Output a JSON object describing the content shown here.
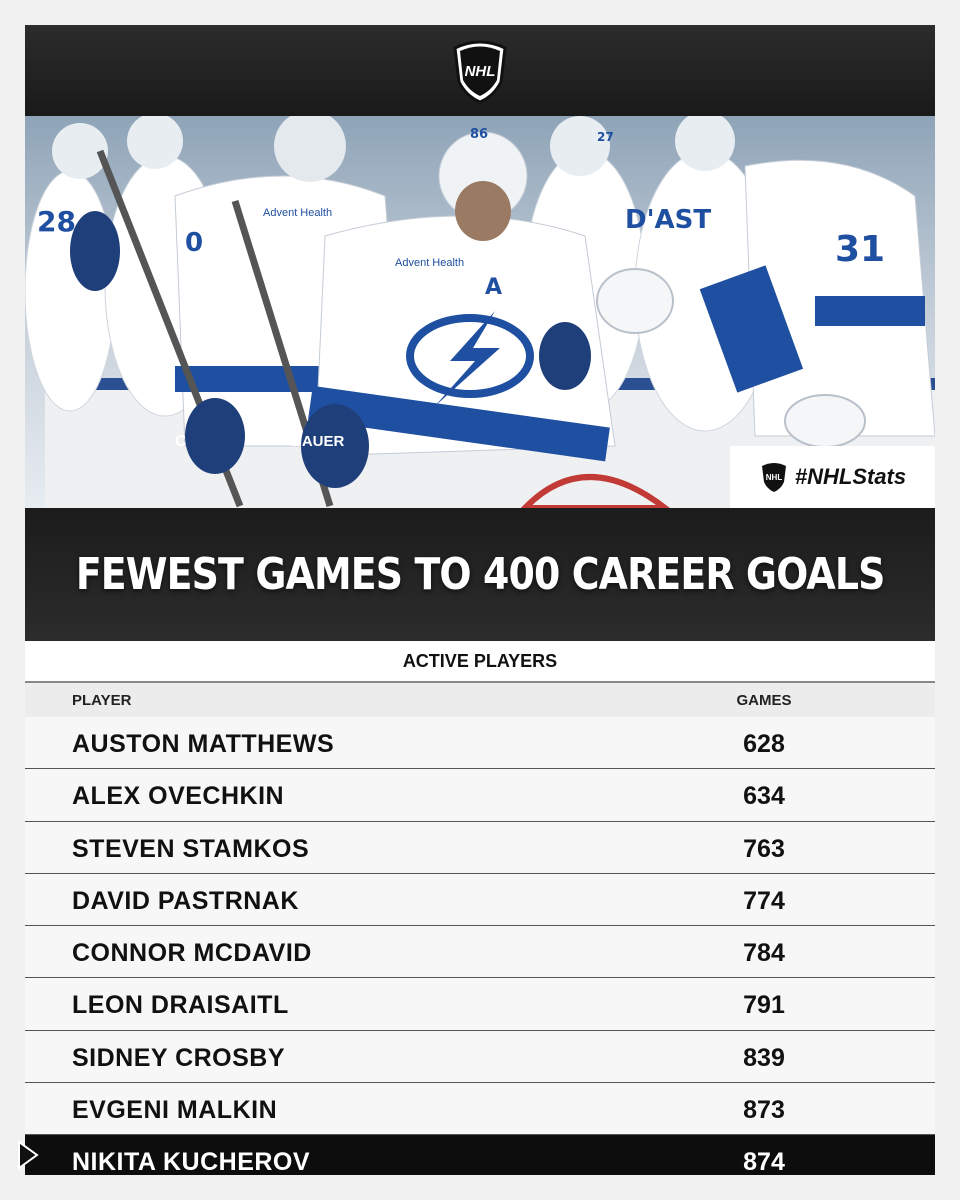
{
  "header": {
    "logo_text": "NHL"
  },
  "photo": {
    "hashtag": "#NHLStats",
    "jersey_numbers": [
      "28",
      "0",
      "86",
      "27",
      "31"
    ],
    "jersey_text": [
      "Advent Health",
      "D'AST",
      "CCM",
      "BAUER",
      "A"
    ]
  },
  "title": "FEWEST GAMES TO 400 CAREER GOALS",
  "subtitle": "ACTIVE PLAYERS",
  "chart_data": {
    "type": "table",
    "title": "FEWEST GAMES TO 400 CAREER GOALS",
    "subtitle": "ACTIVE PLAYERS",
    "columns": [
      "PLAYER",
      "GAMES"
    ],
    "rows": [
      {
        "player": "AUSTON MATTHEWS",
        "games": "628"
      },
      {
        "player": "ALEX OVECHKIN",
        "games": "634"
      },
      {
        "player": "STEVEN STAMKOS",
        "games": "763"
      },
      {
        "player": "DAVID PASTRNAK",
        "games": "774"
      },
      {
        "player": "CONNOR MCDAVID",
        "games": "784"
      },
      {
        "player": "LEON DRAISAITL",
        "games": "791"
      },
      {
        "player": "SIDNEY CROSBY",
        "games": "839"
      },
      {
        "player": "EVGENI MALKIN",
        "games": "873"
      },
      {
        "player": "NIKITA KUCHEROV",
        "games": "874"
      }
    ],
    "highlight_row": 8
  },
  "colors": {
    "highlight": "#0d0d0d",
    "header": "#1f1f1f",
    "lightning_blue": "#1f4fa0"
  }
}
